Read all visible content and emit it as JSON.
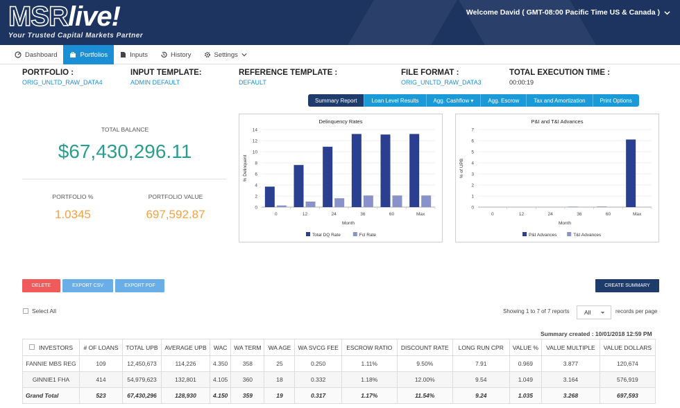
{
  "header": {
    "logo_main": "MSR",
    "logo_live": "live!",
    "logo_tagline": "Your Trusted Capital Markets Partner",
    "welcome": "Welcome David ( GMT-08:00 Pacific Time US & Canada )",
    "welcome_icon": "chevron-down-icon"
  },
  "nav": {
    "items": [
      {
        "label": "Dashboard",
        "icon": "dashboard-icon"
      },
      {
        "label": "Portfolios",
        "icon": "briefcase-icon",
        "active": true
      },
      {
        "label": "Inputs",
        "icon": "file-icon"
      },
      {
        "label": "History",
        "icon": "history-icon"
      },
      {
        "label": "Settings",
        "icon": "gear-icon"
      }
    ]
  },
  "info": {
    "portfolio_label": "PORTFOLIO :",
    "portfolio_value": "ORIG_UNLTD_RAW_DATA4",
    "input_template_label": "INPUT TEMPLATE:",
    "input_template_value": "ADMIN DEFAULT",
    "reference_template_label": "REFERENCE TEMPLATE :",
    "reference_template_value": "DEFAULT",
    "file_format_label": "FILE FORMAT :",
    "file_format_value": "ORIG_UNLTD_RAW_DATA3",
    "execution_time_label": "TOTAL EXECUTION TIME :",
    "execution_time_value": "00:00:19"
  },
  "report_tabs": [
    {
      "label": "Summary Report",
      "active": true
    },
    {
      "label": "Loan Level Results"
    },
    {
      "label": "Agg. Cashflow ▾"
    },
    {
      "label": "Agg. Escrow"
    },
    {
      "label": "Tax and Amortization"
    },
    {
      "label": "Print Options"
    }
  ],
  "stats": {
    "total_balance_label": "TOTAL BALANCE",
    "total_balance": "$67,430,296.11",
    "portfolio_pct_label": "PORTFOLIO %",
    "portfolio_pct": "1.0345",
    "portfolio_value_label": "PORTFOLIO VALUE",
    "portfolio_value": "697,592.87"
  },
  "chart_data": [
    {
      "type": "bar",
      "title": "Delinquency Rates",
      "xlabel": "Month",
      "ylabel": "% Delinquent",
      "categories": [
        "0",
        "12",
        "24",
        "36",
        "60",
        "Max"
      ],
      "ylim": [
        0,
        14
      ],
      "yticks": [
        0,
        2,
        4,
        6,
        8,
        10,
        12,
        14
      ],
      "grid": true,
      "legend": "bottom",
      "series": [
        {
          "name": "Total DQ Rate",
          "color": "#2a3f8f",
          "values": [
            3.7,
            7.6,
            10.9,
            13.2,
            13.1,
            13.2
          ]
        },
        {
          "name": "Fcl Rate",
          "color": "#8a93c9",
          "values": [
            0.3,
            1.0,
            1.6,
            2.1,
            2.1,
            2.1
          ]
        }
      ]
    },
    {
      "type": "bar",
      "title": "P&I and T&I Advances",
      "xlabel": "Month",
      "ylabel": "% of UPB",
      "categories": [
        "0",
        "12",
        "24",
        "36",
        "60",
        "Max"
      ],
      "ylim": [
        0,
        7
      ],
      "yticks": [
        0,
        1,
        2,
        3,
        4,
        5,
        6,
        7
      ],
      "grid": true,
      "legend": "bottom",
      "series": [
        {
          "name": "P&I Advances",
          "color": "#2a3f8f",
          "values": [
            0,
            0,
            0,
            0.02,
            0.03,
            6.1
          ]
        },
        {
          "name": "T&I Advances",
          "color": "#8a93c9",
          "values": [
            0,
            0,
            0,
            0,
            0,
            0
          ]
        }
      ]
    }
  ],
  "actions": {
    "delete": "DELETE",
    "export_csv": "EXPORT CSV",
    "export_pdf": "EXPORT PDF",
    "create_summary": "CREATE SUMMARY"
  },
  "list_controls": {
    "select_all": "Select All",
    "showing": "Showing 1 to 7 of 7 reports",
    "page_size": "All",
    "per_page": "records per page",
    "summary_created": "Summary created : 10/01/2018 12:59 PM"
  },
  "table": {
    "headers": [
      "INVESTORS",
      "# OF LOANS",
      "TOTAL UPB",
      "AVERAGE UPB",
      "WAC",
      "WA TERM",
      "WA AGE",
      "WA SVCG FEE",
      "ESCROW RATIO",
      "DISCOUNT RATE",
      "LONG RUN CPR",
      "VALUE %",
      "VALUE MULTIPLE",
      "VALUE DOLLARS"
    ],
    "rows": [
      [
        "FANNIE MBS REG",
        "109",
        "12,450,673",
        "114,226",
        "4.350",
        "358",
        "25",
        "0.250",
        "1.11%",
        "9.50%",
        "7.91",
        "0.969",
        "3.877",
        "120,674"
      ],
      [
        "GINNIE1 FHA",
        "414",
        "54,979,623",
        "132,801",
        "4.105",
        "360",
        "18",
        "0.332",
        "1.18%",
        "12.00%",
        "9.54",
        "1.049",
        "3.164",
        "576,919"
      ],
      [
        "Grand Total",
        "523",
        "67,430,296",
        "128,930",
        "4.150",
        "359",
        "19",
        "0.317",
        "1.17%",
        "11.54%",
        "9.24",
        "1.035",
        "3.268",
        "697,593"
      ]
    ]
  }
}
